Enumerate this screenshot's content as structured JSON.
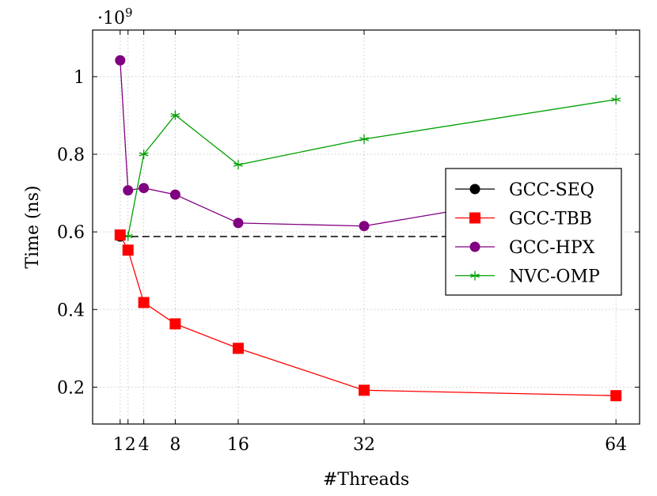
{
  "chart_data": {
    "type": "line",
    "xlabel": "#Threads",
    "ylabel": "Time (ns)",
    "y_scale_label": "·10^9",
    "y_scale_base": "·10",
    "y_scale_exp": "9",
    "xlim": [
      -2.5,
      67
    ],
    "ylim": [
      0.105,
      1.12
    ],
    "x_ticks": [
      1,
      2,
      4,
      8,
      16,
      32,
      64
    ],
    "x_tick_labels": [
      "1",
      "2",
      "4",
      "8",
      "16",
      "32",
      "64"
    ],
    "y_ticks": [
      0.2,
      0.4,
      0.6,
      0.8,
      1.0
    ],
    "y_tick_labels": [
      "0.2",
      "0.4",
      "0.6",
      "0.8",
      "1"
    ],
    "grid": true,
    "legend_position": "right",
    "series": [
      {
        "name": "GCC-SEQ",
        "color": "#000000",
        "marker": "circle",
        "dashed": true,
        "x": [
          1,
          64
        ],
        "y": [
          0.588,
          0.588
        ],
        "markers": [
          [
            1,
            0.588
          ]
        ]
      },
      {
        "name": "GCC-TBB",
        "color": "#ff0000",
        "marker": "square",
        "dashed": false,
        "x": [
          1,
          2,
          4,
          8,
          16,
          32,
          64
        ],
        "y": [
          0.592,
          0.553,
          0.418,
          0.363,
          0.3,
          0.192,
          0.178
        ]
      },
      {
        "name": "GCC-HPX",
        "color": "#800080",
        "marker": "circle",
        "dashed": false,
        "x": [
          1,
          2,
          4,
          8,
          16,
          32,
          64
        ],
        "y": [
          1.042,
          0.707,
          0.713,
          0.696,
          0.623,
          0.615,
          0.725
        ]
      },
      {
        "name": "NVC-OMP",
        "color": "#00a000",
        "marker": "star",
        "dashed": false,
        "x": [
          1,
          2,
          4,
          8,
          16,
          32,
          64
        ],
        "y": [
          0.59,
          0.589,
          0.8,
          0.901,
          0.773,
          0.839,
          0.941
        ]
      }
    ]
  }
}
